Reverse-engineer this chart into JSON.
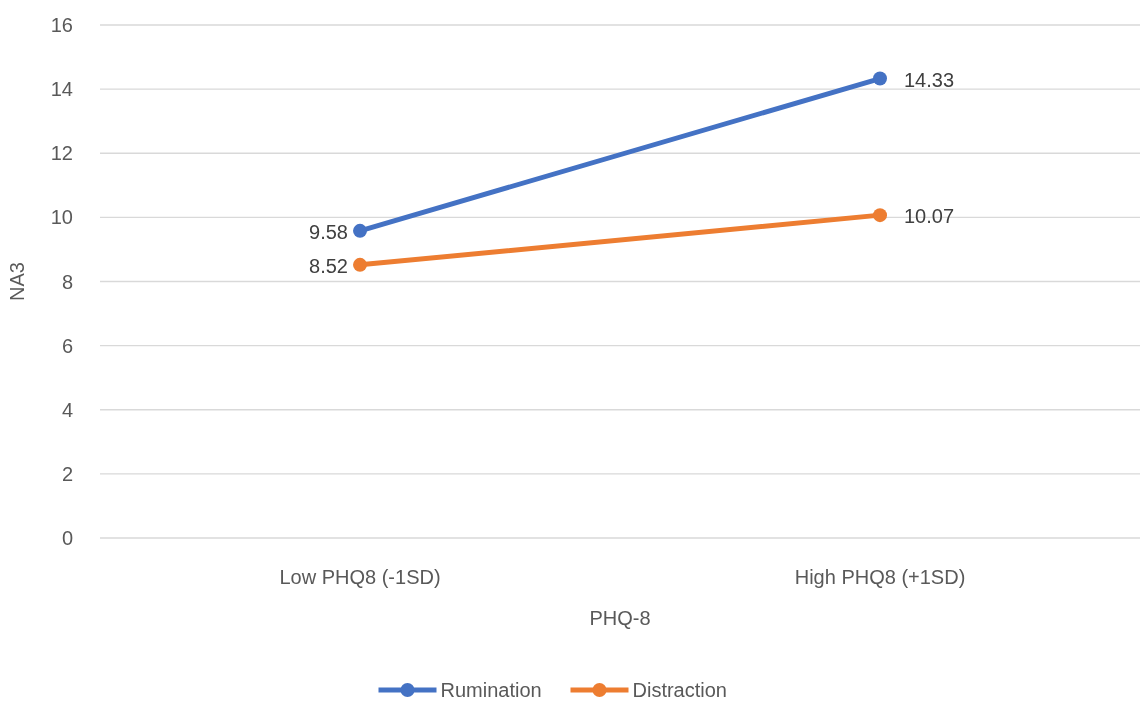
{
  "chart_data": {
    "type": "line",
    "xlabel": "PHQ-8",
    "ylabel": "NA3",
    "categories": [
      "Low PHQ8 (-1SD)",
      "High PHQ8 (+1SD)"
    ],
    "series": [
      {
        "name": "Rumination",
        "color": "#4472c4",
        "values": [
          9.58,
          14.33
        ]
      },
      {
        "name": "Distraction",
        "color": "#ed7d31",
        "values": [
          8.52,
          10.07
        ]
      }
    ],
    "ylim": [
      0,
      16
    ],
    "yticks": [
      0,
      2,
      4,
      6,
      8,
      10,
      12,
      14,
      16
    ],
    "grid": "y",
    "legend": "bottom",
    "marker": "circle",
    "line_style": "solid",
    "data_labels": true
  }
}
